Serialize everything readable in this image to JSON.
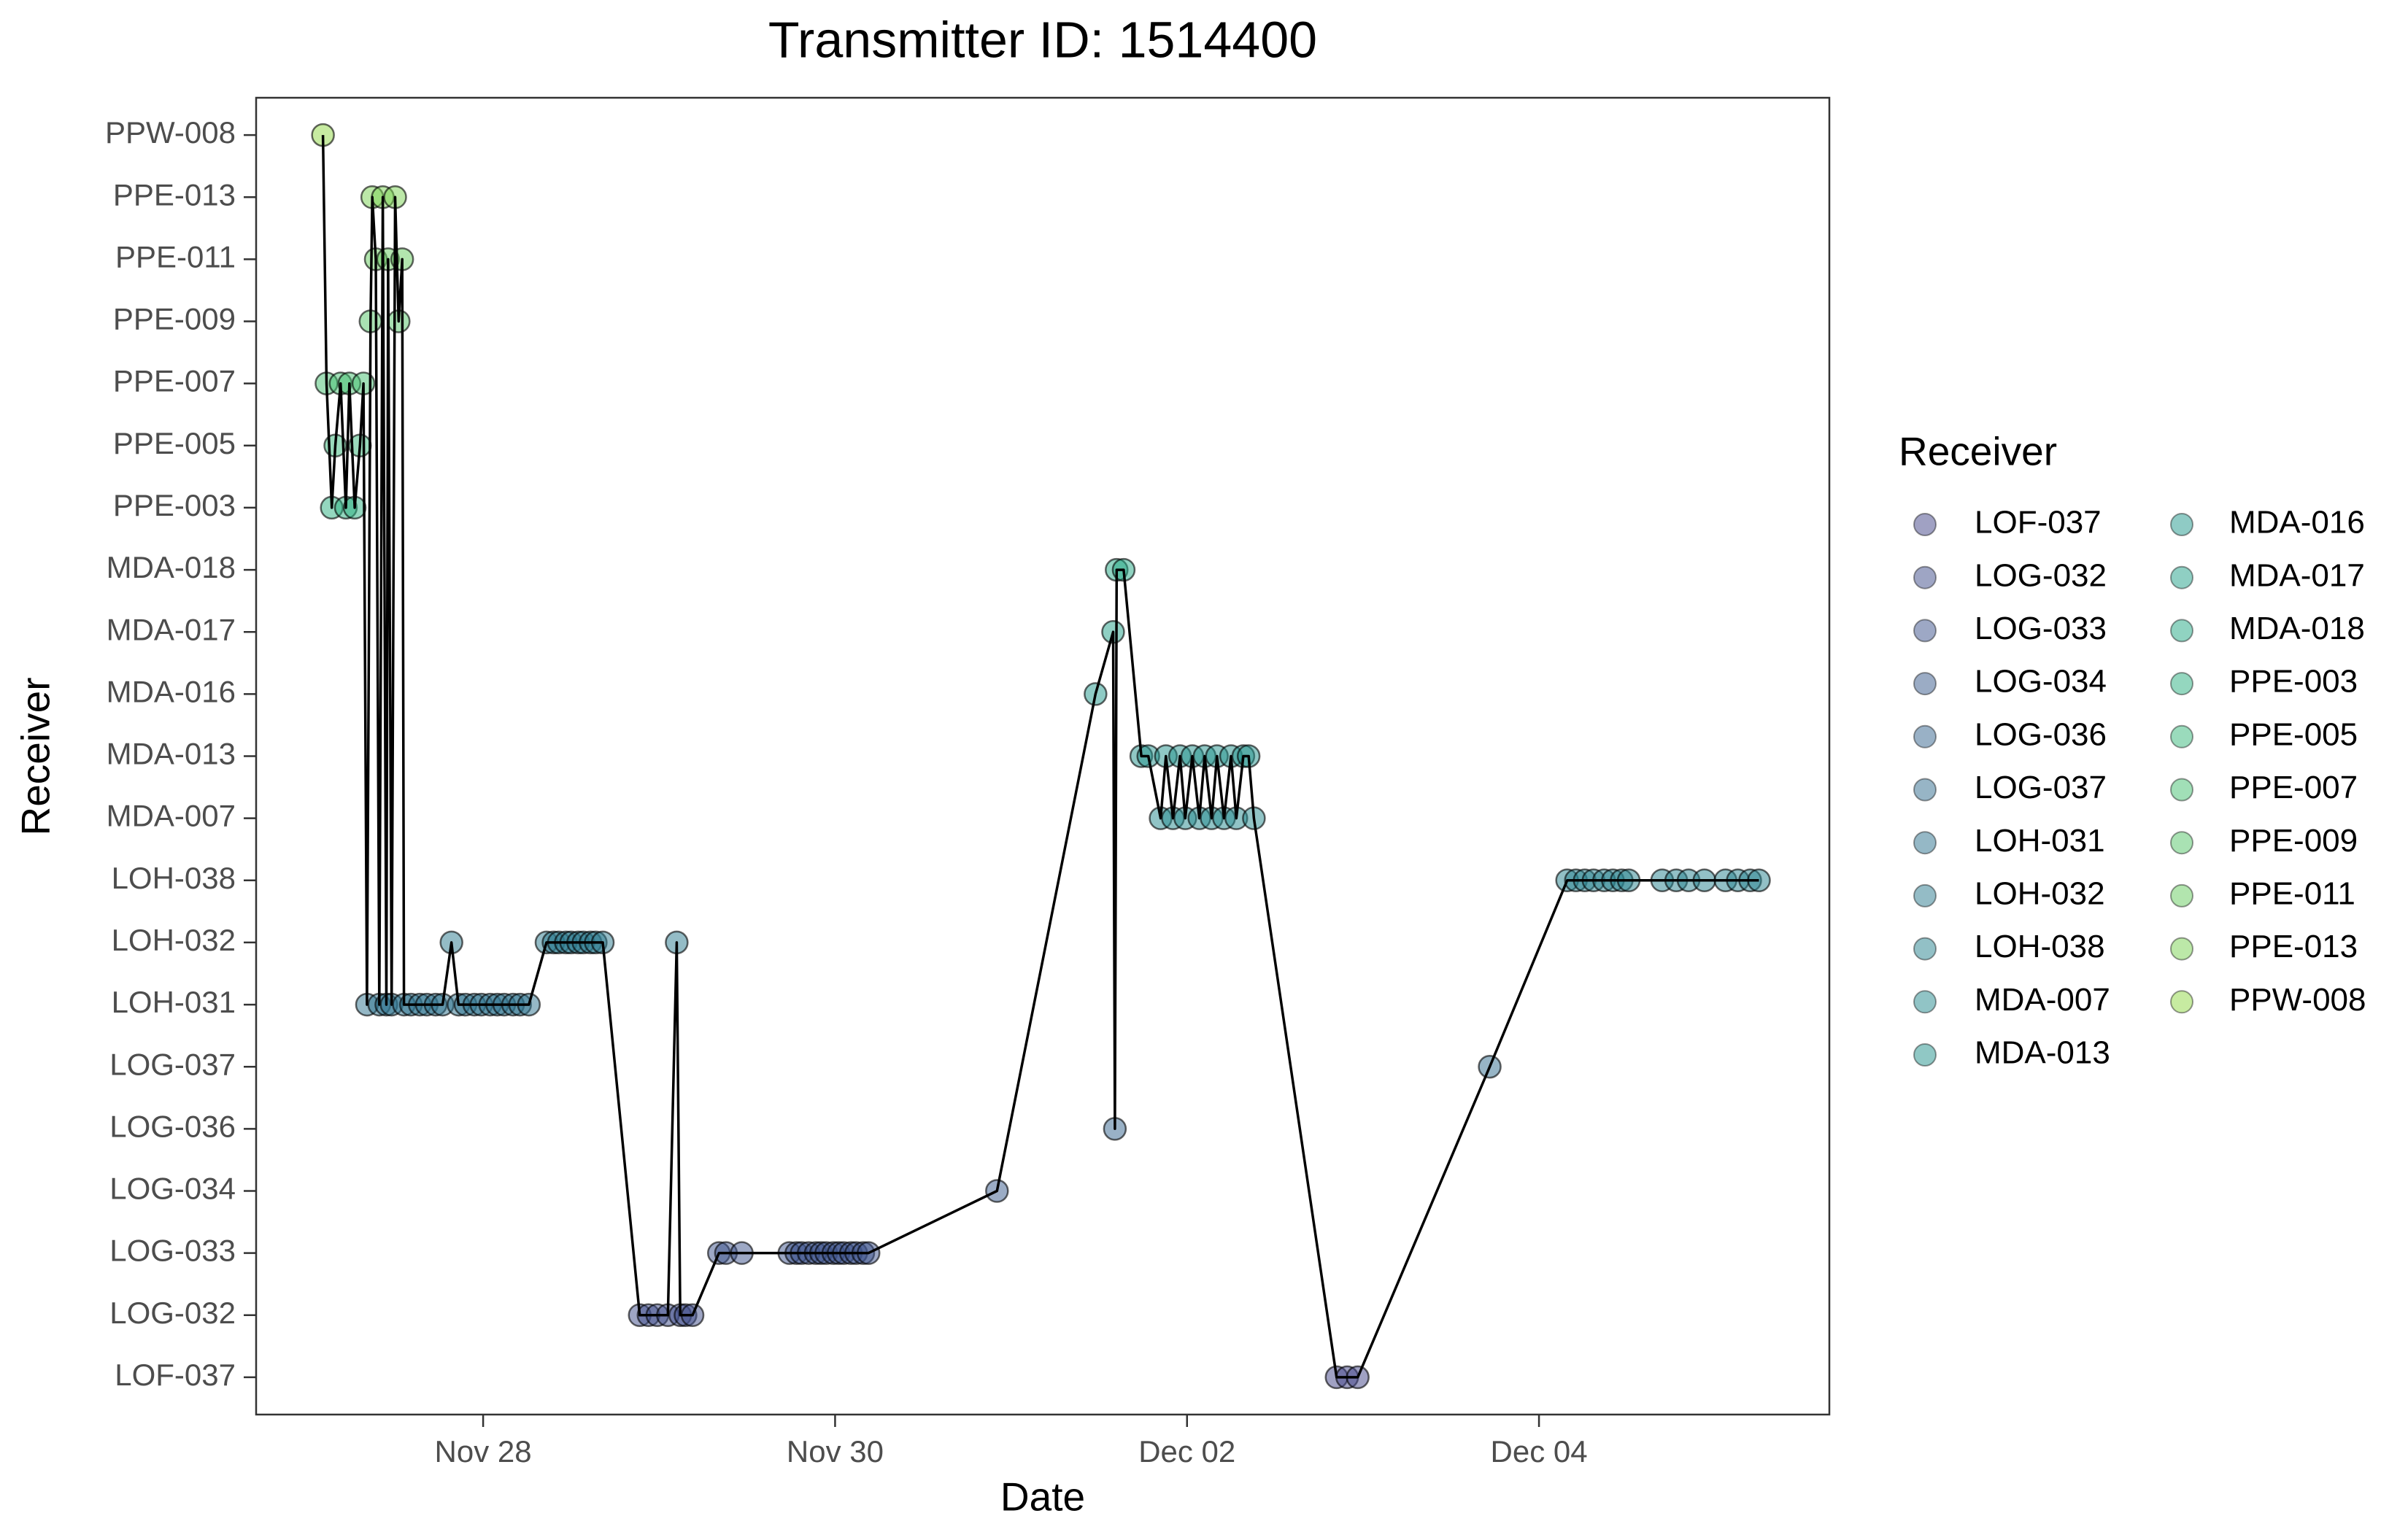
{
  "chart_data": {
    "type": "scatter",
    "title": "Transmitter ID: 1514400",
    "x_label": "Date",
    "y_label": "Receiver",
    "legend_title": "Receiver",
    "line_color": "#000000",
    "categories": [
      "LOF-037",
      "LOG-032",
      "LOG-033",
      "LOG-034",
      "LOG-036",
      "LOG-037",
      "LOH-031",
      "LOH-032",
      "LOH-038",
      "MDA-007",
      "MDA-013",
      "MDA-016",
      "MDA-017",
      "MDA-018",
      "PPE-003",
      "PPE-005",
      "PPE-007",
      "PPE-009",
      "PPE-011",
      "PPE-013",
      "PPW-008"
    ],
    "xlim": [
      26.71,
      35.65
    ],
    "xticks": [
      {
        "value": 28,
        "label": "Nov 28"
      },
      {
        "value": 30,
        "label": "Nov 30"
      },
      {
        "value": 32,
        "label": "Dec 02"
      },
      {
        "value": 34,
        "label": "Dec 04"
      }
    ],
    "x": [
      27.09,
      27.11,
      27.14,
      27.16,
      27.19,
      27.22,
      27.24,
      27.27,
      27.3,
      27.32,
      27.34,
      27.36,
      27.37,
      27.39,
      27.41,
      27.43,
      27.45,
      27.46,
      27.48,
      27.5,
      27.52,
      27.54,
      27.55,
      27.59,
      27.64,
      27.68,
      27.73,
      27.77,
      27.82,
      27.86,
      27.9,
      27.95,
      27.99,
      28.04,
      28.08,
      28.12,
      28.17,
      28.21,
      28.26,
      28.36,
      28.4,
      28.43,
      28.47,
      28.5,
      28.54,
      28.57,
      28.61,
      28.64,
      28.68,
      28.89,
      28.94,
      28.99,
      29.05,
      29.1,
      29.12,
      29.15,
      29.19,
      29.34,
      29.38,
      29.47,
      29.74,
      29.78,
      29.81,
      29.85,
      29.89,
      29.92,
      29.95,
      29.99,
      30.02,
      30.05,
      30.09,
      30.12,
      30.16,
      30.19,
      30.92,
      31.48,
      31.58,
      31.59,
      31.6,
      31.64,
      31.74,
      31.78,
      31.85,
      31.88,
      31.92,
      31.96,
      31.99,
      32.03,
      32.07,
      32.1,
      32.14,
      32.17,
      32.21,
      32.25,
      32.28,
      32.32,
      32.35,
      32.38,
      32.85,
      32.91,
      32.97,
      33.72,
      34.16,
      34.21,
      34.26,
      34.31,
      34.37,
      34.42,
      34.47,
      34.51,
      34.7,
      34.78,
      34.85,
      34.94,
      35.06,
      35.13,
      35.2,
      35.25
    ],
    "values": [
      "PPW-008",
      "PPE-007",
      "PPE-003",
      "PPE-005",
      "PPE-007",
      "PPE-003",
      "PPE-007",
      "PPE-003",
      "PPE-005",
      "PPE-007",
      "LOH-031",
      "PPE-009",
      "PPE-013",
      "PPE-011",
      "LOH-031",
      "PPE-013",
      "LOH-031",
      "PPE-011",
      "LOH-031",
      "PPE-013",
      "PPE-009",
      "PPE-011",
      "LOH-031",
      "LOH-031",
      "LOH-031",
      "LOH-031",
      "LOH-031",
      "LOH-031",
      "LOH-032",
      "LOH-031",
      "LOH-031",
      "LOH-031",
      "LOH-031",
      "LOH-031",
      "LOH-031",
      "LOH-031",
      "LOH-031",
      "LOH-031",
      "LOH-031",
      "LOH-032",
      "LOH-032",
      "LOH-032",
      "LOH-032",
      "LOH-032",
      "LOH-032",
      "LOH-032",
      "LOH-032",
      "LOH-032",
      "LOH-032",
      "LOG-032",
      "LOG-032",
      "LOG-032",
      "LOG-032",
      "LOH-032",
      "LOG-032",
      "LOG-032",
      "LOG-032",
      "LOG-033",
      "LOG-033",
      "LOG-033",
      "LOG-033",
      "LOG-033",
      "LOG-033",
      "LOG-033",
      "LOG-033",
      "LOG-033",
      "LOG-033",
      "LOG-033",
      "LOG-033",
      "LOG-033",
      "LOG-033",
      "LOG-033",
      "LOG-033",
      "LOG-033",
      "LOG-034",
      "MDA-016",
      "MDA-017",
      "LOG-036",
      "MDA-018",
      "MDA-018",
      "MDA-013",
      "MDA-013",
      "MDA-007",
      "MDA-013",
      "MDA-007",
      "MDA-013",
      "MDA-007",
      "MDA-013",
      "MDA-007",
      "MDA-013",
      "MDA-007",
      "MDA-013",
      "MDA-007",
      "MDA-013",
      "MDA-007",
      "MDA-013",
      "MDA-013",
      "MDA-007",
      "LOF-037",
      "LOF-037",
      "LOF-037",
      "LOG-037",
      "LOH-038",
      "LOH-038",
      "LOH-038",
      "LOH-038",
      "LOH-038",
      "LOH-038",
      "LOH-038",
      "LOH-038",
      "LOH-038",
      "LOH-038",
      "LOH-038",
      "LOH-038",
      "LOH-038",
      "LOH-038",
      "LOH-038",
      "LOH-038"
    ],
    "series": [
      {
        "name": "LOF-037",
        "color": "#414487"
      },
      {
        "name": "LOG-032",
        "color": "#3e4c8a"
      },
      {
        "name": "LOG-033",
        "color": "#3b528b"
      },
      {
        "name": "LOG-034",
        "color": "#375a8c"
      },
      {
        "name": "LOG-036",
        "color": "#33638d"
      },
      {
        "name": "LOG-037",
        "color": "#2f6b8e"
      },
      {
        "name": "LOH-031",
        "color": "#2c728e"
      },
      {
        "name": "LOH-032",
        "color": "#297a8e"
      },
      {
        "name": "LOH-038",
        "color": "#26828e"
      },
      {
        "name": "MDA-007",
        "color": "#23898e"
      },
      {
        "name": "MDA-013",
        "color": "#21918c"
      },
      {
        "name": "MDA-016",
        "color": "#1f988b"
      },
      {
        "name": "MDA-017",
        "color": "#1fa088"
      },
      {
        "name": "MDA-018",
        "color": "#22a884"
      },
      {
        "name": "PPE-003",
        "color": "#2ab07f"
      },
      {
        "name": "PPE-005",
        "color": "#35b779"
      },
      {
        "name": "PPE-007",
        "color": "#44bf70"
      },
      {
        "name": "PPE-009",
        "color": "#54c568"
      },
      {
        "name": "PPE-011",
        "color": "#65cb5e"
      },
      {
        "name": "PPE-013",
        "color": "#7ad151"
      },
      {
        "name": "PPW-008",
        "color": "#8fd744"
      }
    ]
  }
}
